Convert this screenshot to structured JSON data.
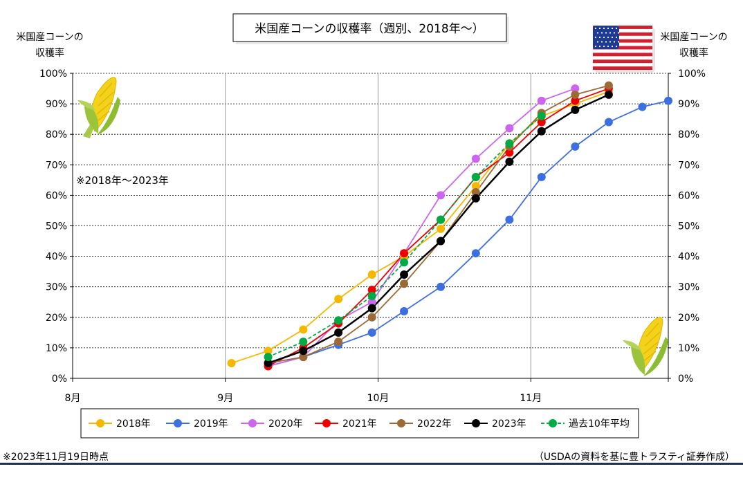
{
  "chart_data": {
    "type": "line",
    "title": "米国産コーンの収穫率（週別、2018年～）",
    "left_axis_label": [
      "米国産コーンの",
      "収穫率"
    ],
    "right_axis_label": [
      "米国産コーンの",
      "収穫率"
    ],
    "x_ticks": [
      "8月",
      "9月",
      "10月",
      "11月"
    ],
    "y_ticks": [
      "0%",
      "10%",
      "20%",
      "30%",
      "40%",
      "50%",
      "60%",
      "70%",
      "80%",
      "90%",
      "100%"
    ],
    "ylim": [
      0,
      100
    ],
    "xlim": [
      0,
      39
    ],
    "annotation": "※2018年～2023年",
    "grid": {
      "horizontal": "dotted",
      "vertical": "solid-gray-at-month"
    },
    "legend_position": "bottom",
    "series": [
      {
        "name": "2018年",
        "color": "#F5B800",
        "dashed": false,
        "x": [
          10.4,
          12.8,
          15.1,
          17.4,
          19.6,
          21.7,
          24.1,
          26.4,
          28.6,
          30.7,
          32.9,
          35.1
        ],
        "values": [
          5,
          9,
          16,
          26,
          34,
          40,
          49,
          63,
          77,
          86,
          90,
          94
        ]
      },
      {
        "name": "2019年",
        "color": "#3D6FE0",
        "dashed": false,
        "x": [
          12.8,
          15.1,
          17.4,
          19.6,
          21.7,
          24.1,
          26.4,
          28.6,
          30.7,
          32.9,
          35.1,
          37.3,
          39
        ],
        "values": [
          4,
          7,
          11,
          15,
          22,
          30,
          41,
          52,
          66,
          76,
          84,
          89,
          91
        ]
      },
      {
        "name": "2020年",
        "color": "#CC66EE",
        "dashed": false,
        "x": [
          12.8,
          15.1,
          17.4,
          19.6,
          21.7,
          24.1,
          26.4,
          28.6,
          30.7,
          32.9
        ],
        "values": [
          4,
          7,
          19,
          25,
          41,
          60,
          72,
          82,
          91,
          95
        ]
      },
      {
        "name": "2021年",
        "color": "#EE0000",
        "dashed": false,
        "x": [
          12.8,
          15.1,
          17.4,
          19.6,
          21.7,
          24.1,
          26.4,
          28.6,
          30.7,
          32.9,
          35.1
        ],
        "values": [
          4,
          10,
          18,
          29,
          41,
          52,
          66,
          74,
          84,
          91,
          95
        ]
      },
      {
        "name": "2022年",
        "color": "#9B6A35",
        "dashed": false,
        "x": [
          12.8,
          15.1,
          17.4,
          19.6,
          21.7,
          24.1,
          26.4,
          28.6,
          30.7,
          32.9,
          35.1
        ],
        "values": [
          5,
          7,
          12,
          20,
          31,
          45,
          61,
          76,
          87,
          93,
          96
        ]
      },
      {
        "name": "2023年",
        "color": "#000000",
        "dashed": false,
        "x": [
          12.8,
          15.1,
          17.4,
          19.6,
          21.7,
          24.1,
          26.4,
          28.6,
          30.7,
          32.9,
          35.1
        ],
        "values": [
          5,
          9,
          15,
          23,
          34,
          45,
          59,
          71,
          81,
          88,
          93
        ]
      },
      {
        "name": "過去10年平均",
        "color": "#00AA44",
        "dashed": true,
        "x": [
          12.8,
          15.1,
          17.4,
          19.6,
          21.7,
          24.1,
          26.4,
          28.6,
          30.7
        ],
        "values": [
          7,
          12,
          19,
          27,
          38,
          52,
          66,
          77,
          86
        ]
      }
    ]
  },
  "footer": {
    "note": "※2023年11月19日時点",
    "source": "（USDAの資料を基に豊トラスティ証券作成）"
  },
  "icons": {
    "flag": "us-flag-icon",
    "corn": "corn-icon"
  }
}
